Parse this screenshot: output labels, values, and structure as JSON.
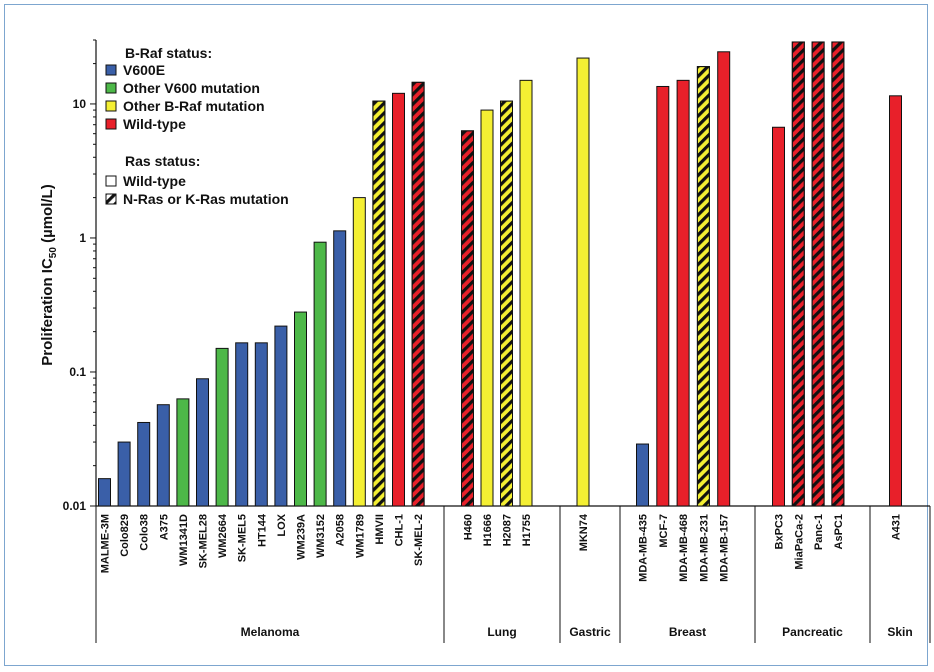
{
  "chart_data": {
    "type": "bar",
    "title": "",
    "xlabel": "",
    "ylabel_main": "Proliferation IC",
    "ylabel_sub": "50",
    "ylabel_unit": " (µmol/L)",
    "yscale": "log",
    "ylim": [
      0.01,
      30
    ],
    "yticks": [
      0.01,
      0.1,
      1,
      10
    ],
    "ytick_labels": [
      "0.01",
      "0.1",
      "1",
      "10"
    ],
    "colors": {
      "V600E": "#3a5fa8",
      "Other V600 mutation": "#4db848",
      "Other B-Raf mutation": "#f4ef33",
      "Wild-type": "#e8202a"
    },
    "legend": {
      "placement": "top-left",
      "braf_title": "B-Raf status:",
      "braf_items": [
        {
          "key": "V600E",
          "label": "V600E"
        },
        {
          "key": "Other V600 mutation",
          "label": "Other V600 mutation"
        },
        {
          "key": "Other B-Raf mutation",
          "label": "Other B-Raf mutation"
        },
        {
          "key": "Wild-type",
          "label": "Wild-type"
        }
      ],
      "ras_title": "Ras status:",
      "ras_items": [
        {
          "hatched": false,
          "label": "Wild-type"
        },
        {
          "hatched": true,
          "label": "N-Ras or K-Ras mutation"
        }
      ]
    },
    "groups": [
      {
        "name": "Melanoma",
        "bars": [
          {
            "label": "MALME-3M",
            "value": 0.016,
            "braf": "V600E",
            "ras_mut": false
          },
          {
            "label": "Colo829",
            "value": 0.03,
            "braf": "V600E",
            "ras_mut": false
          },
          {
            "label": "Colo38",
            "value": 0.042,
            "braf": "V600E",
            "ras_mut": false
          },
          {
            "label": "A375",
            "value": 0.057,
            "braf": "V600E",
            "ras_mut": false
          },
          {
            "label": "WM1341D",
            "value": 0.063,
            "braf": "Other V600 mutation",
            "ras_mut": false
          },
          {
            "label": "SK-MEL28",
            "value": 0.089,
            "braf": "V600E",
            "ras_mut": false
          },
          {
            "label": "WM2664",
            "value": 0.15,
            "braf": "Other V600 mutation",
            "ras_mut": false
          },
          {
            "label": "SK-MEL5",
            "value": 0.165,
            "braf": "V600E",
            "ras_mut": false
          },
          {
            "label": "HT144",
            "value": 0.165,
            "braf": "V600E",
            "ras_mut": false
          },
          {
            "label": "LOX",
            "value": 0.22,
            "braf": "V600E",
            "ras_mut": false
          },
          {
            "label": "WM239A",
            "value": 0.28,
            "braf": "Other V600 mutation",
            "ras_mut": false
          },
          {
            "label": "WM3152",
            "value": 0.93,
            "braf": "Other V600 mutation",
            "ras_mut": false
          },
          {
            "label": "A2058",
            "value": 1.13,
            "braf": "V600E",
            "ras_mut": false
          },
          {
            "label": "WM1789",
            "value": 2.0,
            "braf": "Other B-Raf mutation",
            "ras_mut": false
          },
          {
            "label": "HMVII",
            "value": 10.5,
            "braf": "Other B-Raf mutation",
            "ras_mut": true
          },
          {
            "label": "CHL-1",
            "value": 12.0,
            "braf": "Wild-type",
            "ras_mut": false
          },
          {
            "label": "SK-MEL-2",
            "value": 14.5,
            "braf": "Wild-type",
            "ras_mut": true
          }
        ]
      },
      {
        "name": "Lung",
        "bars": [
          {
            "label": "H460",
            "value": 6.3,
            "braf": "Wild-type",
            "ras_mut": true
          },
          {
            "label": "H1666",
            "value": 9.0,
            "braf": "Other B-Raf mutation",
            "ras_mut": false
          },
          {
            "label": "H2087",
            "value": 10.5,
            "braf": "Other B-Raf mutation",
            "ras_mut": true
          },
          {
            "label": "H1755",
            "value": 15.0,
            "braf": "Other B-Raf mutation",
            "ras_mut": false
          }
        ]
      },
      {
        "name": "Gastric",
        "bars": [
          {
            "label": "MKN74",
            "value": 22.0,
            "braf": "Other B-Raf mutation",
            "ras_mut": false
          }
        ]
      },
      {
        "name": "Breast",
        "bars": [
          {
            "label": "MDA-MB-435",
            "value": 0.029,
            "braf": "V600E",
            "ras_mut": false
          },
          {
            "label": "MCF-7",
            "value": 13.5,
            "braf": "Wild-type",
            "ras_mut": false
          },
          {
            "label": "MDA-MB-468",
            "value": 15.0,
            "braf": "Wild-type",
            "ras_mut": false
          },
          {
            "label": "MDA-MB-231",
            "value": 19.0,
            "braf": "Other B-Raf mutation",
            "ras_mut": true
          },
          {
            "label": "MDA-MB-157",
            "value": 24.5,
            "braf": "Wild-type",
            "ras_mut": false
          }
        ]
      },
      {
        "name": "Pancreatic",
        "bars": [
          {
            "label": "BxPC3",
            "value": 6.7,
            "braf": "Wild-type",
            "ras_mut": false
          },
          {
            "label": "MiaPaCa-2",
            "value": 29.0,
            "braf": "Wild-type",
            "ras_mut": true
          },
          {
            "label": "Panc-1",
            "value": 29.0,
            "braf": "Wild-type",
            "ras_mut": true
          },
          {
            "label": "AsPC1",
            "value": 29.0,
            "braf": "Wild-type",
            "ras_mut": true
          }
        ]
      },
      {
        "name": "Skin",
        "bars": [
          {
            "label": "A431",
            "value": 11.5,
            "braf": "Wild-type",
            "ras_mut": false
          }
        ]
      }
    ]
  }
}
